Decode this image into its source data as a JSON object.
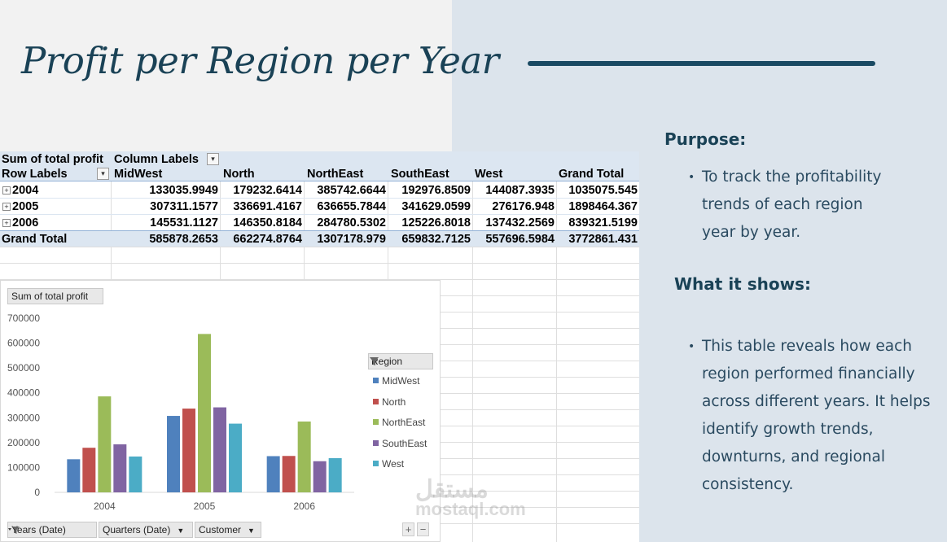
{
  "slide": {
    "title": "Profit per Region per Year"
  },
  "pivot": {
    "value_label": "Sum of total profit",
    "column_labels": "Column Labels",
    "row_labels": "Row Labels",
    "headers": [
      "MidWest",
      "North",
      "NorthEast",
      "SouthEast",
      "West",
      "Grand Total"
    ],
    "rows": [
      {
        "label": "2004",
        "values": [
          "133035.9949",
          "179232.6414",
          "385742.6644",
          "192976.8509",
          "144087.3935",
          "1035075.545"
        ]
      },
      {
        "label": "2005",
        "values": [
          "307311.1577",
          "336691.4167",
          "636655.7844",
          "341629.0599",
          "276176.948",
          "1898464.367"
        ]
      },
      {
        "label": "2006",
        "values": [
          "145531.1127",
          "146350.8184",
          "284780.5302",
          "125226.8018",
          "137432.2569",
          "839321.5199"
        ]
      }
    ],
    "grand_total": {
      "label": "Grand Total",
      "values": [
        "585878.2653",
        "662274.8764",
        "1307178.979",
        "659832.7125",
        "557696.5984",
        "3772861.431"
      ]
    }
  },
  "chart": {
    "value_button": "Sum of total profit",
    "legend_title": "Region",
    "field_buttons": [
      "Years (Date)",
      "Quarters (Date)",
      "Customer"
    ],
    "plus": "+",
    "minus": "−"
  },
  "chart_data": {
    "type": "bar",
    "categories": [
      "2004",
      "2005",
      "2006"
    ],
    "yticks": [
      "700000",
      "600000",
      "500000",
      "400000",
      "300000",
      "200000",
      "100000",
      "0"
    ],
    "ylim": [
      0,
      700000
    ],
    "grid": false,
    "legend": "right",
    "series": [
      {
        "name": "MidWest",
        "color": "#4f81bd",
        "values": [
          133035.9949,
          307311.1577,
          145531.1127
        ]
      },
      {
        "name": "North",
        "color": "#c0504d",
        "values": [
          179232.6414,
          336691.4167,
          146350.8184
        ]
      },
      {
        "name": "NorthEast",
        "color": "#9bbb59",
        "values": [
          385742.6644,
          636655.7844,
          284780.5302
        ]
      },
      {
        "name": "SouthEast",
        "color": "#8064a2",
        "values": [
          192976.8509,
          341629.0599,
          125226.8018
        ]
      },
      {
        "name": "West",
        "color": "#4bacc6",
        "values": [
          144087.3935,
          276176.948,
          137432.2569
        ]
      }
    ]
  },
  "notes": {
    "purpose_heading": "Purpose:",
    "purpose_lines": [
      "To track the profitability",
      "trends of each region",
      "year by year."
    ],
    "shows_heading": "What it shows:",
    "shows_lines": [
      "This table reveals how each",
      "region performed financially",
      "across different years. It helps",
      "identify growth trends,",
      "downturns, and regional",
      "consistency."
    ]
  },
  "watermark": {
    "arabic": "مستقل",
    "latin": "mostaql.com"
  }
}
